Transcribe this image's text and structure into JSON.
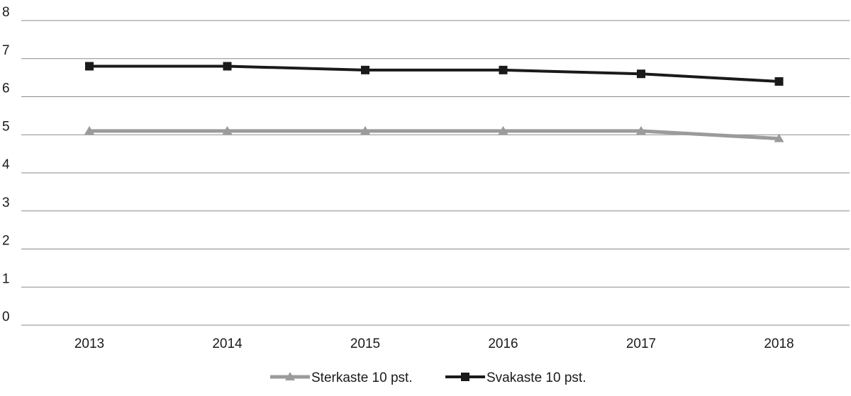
{
  "chart_data": {
    "type": "line",
    "title": "",
    "xlabel": "",
    "ylabel": "",
    "categories": [
      "2013",
      "2014",
      "2015",
      "2016",
      "2017",
      "2018"
    ],
    "ylim": [
      0,
      8
    ],
    "yticks": [
      0,
      1,
      2,
      3,
      4,
      5,
      6,
      7,
      8
    ],
    "grid": true,
    "legend_position": "bottom-center",
    "series": [
      {
        "name": "Sterkaste 10 pst.",
        "values": [
          5.1,
          5.1,
          5.1,
          5.1,
          5.1,
          4.9
        ],
        "color": "#9b9b9b",
        "marker": "triangle"
      },
      {
        "name": "Svakaste 10 pst.",
        "values": [
          6.8,
          6.8,
          6.7,
          6.7,
          6.6,
          6.4
        ],
        "color": "#1a1a1a",
        "marker": "square"
      }
    ]
  }
}
